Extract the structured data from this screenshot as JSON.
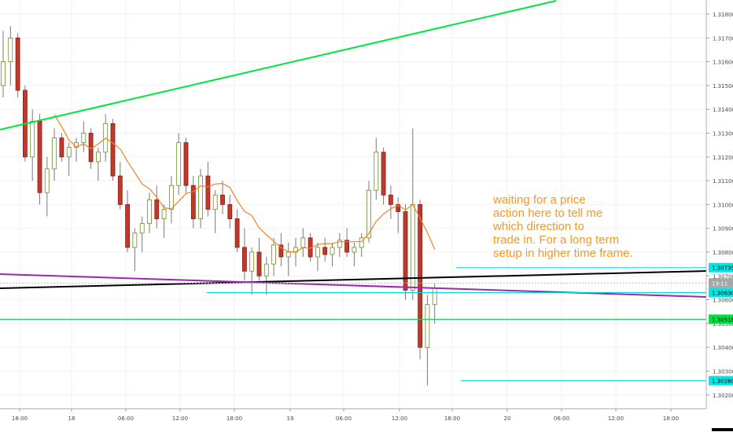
{
  "chart_data": {
    "type": "candlestick",
    "price_axis": {
      "ticks": [
        "1.31800",
        "1.31700",
        "1.31600",
        "1.31500",
        "1.31400",
        "1.31300",
        "1.31200",
        "1.31100",
        "1.31000",
        "1.30900",
        "1.30800",
        "1.30700",
        "1.30600",
        "1.30500",
        "1.30400",
        "1.30300",
        "1.30200"
      ],
      "range": [
        1.3015,
        1.3186
      ]
    },
    "time_axis": {
      "labels": [
        "18:00",
        "18",
        "06:00",
        "12:00",
        "18:00",
        "19",
        "06:00",
        "12:00",
        "18:00",
        "20",
        "06:00",
        "12:00",
        "18:00"
      ]
    },
    "price_tags": [
      {
        "label": "1.30735",
        "value": 1.30735,
        "color": "#00e5e5",
        "line": "cyan-right"
      },
      {
        "label": "13:11",
        "value": 1.3067,
        "color": "#a6a6a6",
        "line": "dotted-grey"
      },
      {
        "label": "1.30630",
        "value": 1.3063,
        "color": "#00e5e5",
        "line": "cyan-mid"
      },
      {
        "label": "1.30518",
        "value": 1.30518,
        "color": "#00e040",
        "line": "green-horizontal"
      },
      {
        "label": "1.30260",
        "value": 1.3026,
        "color": "#00e5e5",
        "line": "cyan-lower"
      }
    ],
    "annotation": {
      "lines": [
        "waiting for a price",
        "action here to tell me",
        "which direction to",
        "trade in. For a long term",
        "setup in higher time frame."
      ],
      "color": "#f59a23"
    },
    "series": [
      {
        "kind": "moving-average",
        "color": "#f5821f"
      },
      {
        "kind": "trendline",
        "color": "#00e640"
      },
      {
        "kind": "trendline",
        "color": "#000000"
      },
      {
        "kind": "trendline",
        "color": "#9c27b0"
      }
    ],
    "candles": [
      [
        1.315,
        1.3173,
        1.3145,
        1.316
      ],
      [
        1.316,
        1.3175,
        1.315,
        1.317
      ],
      [
        1.317,
        1.3172,
        1.3145,
        1.3148
      ],
      [
        1.3148,
        1.315,
        1.3118,
        1.312
      ],
      [
        1.312,
        1.314,
        1.311,
        1.3135
      ],
      [
        1.3135,
        1.3138,
        1.31,
        1.3105
      ],
      [
        1.3105,
        1.312,
        1.3095,
        1.3115
      ],
      [
        1.3115,
        1.3132,
        1.311,
        1.3128
      ],
      [
        1.3128,
        1.313,
        1.3118,
        1.312
      ],
      [
        1.312,
        1.3126,
        1.3112,
        1.3124
      ],
      [
        1.3124,
        1.3128,
        1.3118,
        1.3126
      ],
      [
        1.3126,
        1.3135,
        1.3122,
        1.313
      ],
      [
        1.313,
        1.3132,
        1.3115,
        1.3118
      ],
      [
        1.3118,
        1.3124,
        1.311,
        1.3122
      ],
      [
        1.3122,
        1.3138,
        1.3118,
        1.3134
      ],
      [
        1.3134,
        1.3136,
        1.311,
        1.3112
      ],
      [
        1.3112,
        1.3118,
        1.3098,
        1.31
      ],
      [
        1.31,
        1.3106,
        1.308,
        1.3082
      ],
      [
        1.3082,
        1.309,
        1.3072,
        1.3088
      ],
      [
        1.3088,
        1.3095,
        1.308,
        1.3092
      ],
      [
        1.3092,
        1.3105,
        1.3088,
        1.3102
      ],
      [
        1.3102,
        1.3108,
        1.309,
        1.3094
      ],
      [
        1.3094,
        1.31,
        1.3086,
        1.3098
      ],
      [
        1.3098,
        1.3112,
        1.3092,
        1.3108
      ],
      [
        1.3108,
        1.313,
        1.3104,
        1.3126
      ],
      [
        1.3126,
        1.3128,
        1.3105,
        1.3108
      ],
      [
        1.3108,
        1.3112,
        1.309,
        1.3094
      ],
      [
        1.3094,
        1.3115,
        1.309,
        1.3112
      ],
      [
        1.3112,
        1.3118,
        1.3095,
        1.3098
      ],
      [
        1.3098,
        1.3106,
        1.3088,
        1.3104
      ],
      [
        1.3104,
        1.311,
        1.3096,
        1.31
      ],
      [
        1.31,
        1.3104,
        1.309,
        1.3094
      ],
      [
        1.3094,
        1.3098,
        1.308,
        1.3082
      ],
      [
        1.3082,
        1.309,
        1.3068,
        1.3072
      ],
      [
        1.3072,
        1.3082,
        1.3062,
        1.308
      ],
      [
        1.308,
        1.3086,
        1.3068,
        1.307
      ],
      [
        1.307,
        1.3078,
        1.3062,
        1.3075
      ],
      [
        1.3075,
        1.3086,
        1.307,
        1.3083
      ],
      [
        1.3083,
        1.3088,
        1.3074,
        1.3078
      ],
      [
        1.3078,
        1.3084,
        1.307,
        1.308
      ],
      [
        1.308,
        1.3086,
        1.3074,
        1.3082
      ],
      [
        1.3082,
        1.309,
        1.3078,
        1.3086
      ],
      [
        1.3086,
        1.3088,
        1.3076,
        1.3078
      ],
      [
        1.3078,
        1.3084,
        1.3072,
        1.3082
      ],
      [
        1.3082,
        1.3086,
        1.3076,
        1.3079
      ],
      [
        1.3079,
        1.3084,
        1.3074,
        1.3082
      ],
      [
        1.3082,
        1.3088,
        1.3078,
        1.3085
      ],
      [
        1.3085,
        1.309,
        1.3078,
        1.308
      ],
      [
        1.308,
        1.3084,
        1.3074,
        1.3082
      ],
      [
        1.3082,
        1.3088,
        1.3078,
        1.3086
      ],
      [
        1.3086,
        1.311,
        1.3084,
        1.3106
      ],
      [
        1.3106,
        1.3128,
        1.3102,
        1.3122
      ],
      [
        1.3122,
        1.3124,
        1.31,
        1.3104
      ],
      [
        1.3104,
        1.3108,
        1.3094,
        1.31
      ],
      [
        1.31,
        1.3103,
        1.3088,
        1.3097
      ],
      [
        1.3097,
        1.31,
        1.306,
        1.3064
      ],
      [
        1.3064,
        1.3132,
        1.306,
        1.31
      ],
      [
        1.31,
        1.3102,
        1.3035,
        1.304
      ],
      [
        1.304,
        1.3062,
        1.3024,
        1.3058
      ],
      [
        1.3058,
        1.3067,
        1.305,
        1.3065
      ]
    ]
  }
}
